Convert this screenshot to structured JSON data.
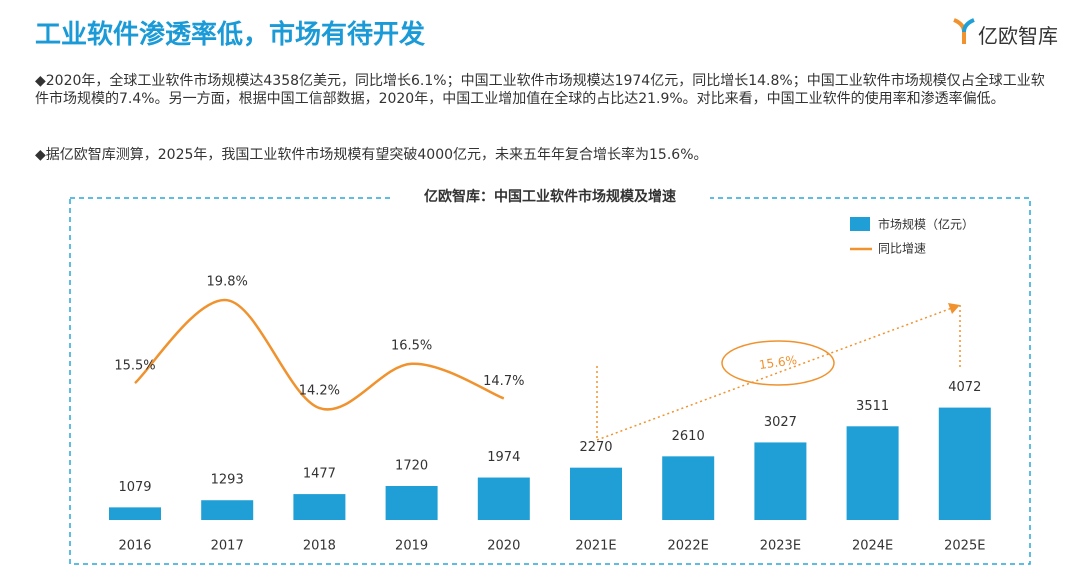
{
  "header": {
    "title": "工业软件渗透率低，市场有待开发",
    "logo": "亿欧智库"
  },
  "bullets": [
    "◆2020年，全球工业软件市场规模达4358亿美元，同比增长6.1%；中国工业软件市场规模达1974亿元，同比增长14.8%；中国工业软件市场规模仅占全球工业软件市场规模的7.4%。另一方面，根据中国工信部数据，2020年，中国工业增加值在全球的占比达21.9%。对比来看，中国工业软件的使用率和渗透率偏低。",
    "◆据亿欧智库测算，2025年，我国工业软件市场规模有望突破4000亿元，未来五年年复合增长率为15.6%。"
  ],
  "chart_data": {
    "type": "bar-line",
    "title": "亿欧智库：中国工业软件市场规模及增速",
    "categories": [
      "2016",
      "2017",
      "2018",
      "2019",
      "2020",
      "2021E",
      "2022E",
      "2023E",
      "2024E",
      "2025E"
    ],
    "series": [
      {
        "name": "市场规模（亿元）",
        "color": "#1f9fd5",
        "values": [
          1079,
          1293,
          1477,
          1720,
          1974,
          2270,
          2610,
          3027,
          3511,
          4072
        ]
      },
      {
        "name": "同比增速",
        "color": "#f0922e",
        "axis": "y2",
        "values": [
          15.5,
          19.8,
          14.2,
          16.5,
          14.7,
          null,
          null,
          null,
          null,
          null
        ],
        "value_labels": [
          "15.5%",
          "19.8%",
          "14.2%",
          "16.5%",
          "14.7%",
          null,
          null,
          null,
          null,
          null
        ]
      }
    ],
    "ylim": [
      700,
      4300
    ],
    "y2lim": [
      10,
      25
    ],
    "annotation": "15.6%"
  }
}
